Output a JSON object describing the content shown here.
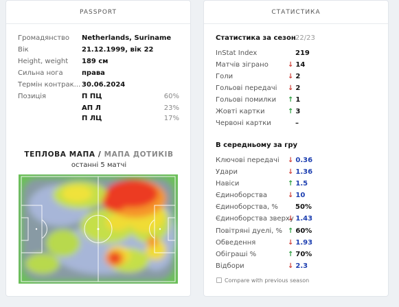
{
  "passport": {
    "title": "PASSPORT",
    "fields": [
      {
        "label": "Громадянство",
        "value": "Netherlands, Suriname"
      },
      {
        "label": "Вік",
        "value": "21.12.1999, вік 22"
      },
      {
        "label": "Height, weight",
        "value": "189 см"
      },
      {
        "label": "Сильна нога",
        "value": "права"
      },
      {
        "label": "Термін контрак...",
        "value": "30.06.2024"
      }
    ],
    "position_label": "Позиція",
    "positions": [
      {
        "name": "П ПЦ",
        "pct": "60%"
      },
      {
        "name": "АП Л",
        "pct": "23%"
      },
      {
        "name": "П ЛЦ",
        "pct": "17%"
      }
    ],
    "heatmap": {
      "title_main": "ТЕПЛОВА МАПА",
      "separator": " / ",
      "title_alt": "МАПА ДОТИКІВ",
      "subtitle": "останні 5 матчі"
    }
  },
  "stats": {
    "title": "СТАТИСТИКА",
    "season_title": "Статистика за сезон",
    "season": "22/23",
    "season_rows": [
      {
        "label": "InStat Index",
        "value": "219",
        "trend": "none"
      },
      {
        "label": "Матчів зіграно",
        "value": "14",
        "trend": "down"
      },
      {
        "label": "Голи",
        "value": "2",
        "trend": "down"
      },
      {
        "label": "Гольові передачі",
        "value": "2",
        "trend": "down"
      },
      {
        "label": "Гольові помилки",
        "value": "1",
        "trend": "up"
      },
      {
        "label": "Жовті картки",
        "value": "3",
        "trend": "up"
      },
      {
        "label": "Червоні картки",
        "value": "–",
        "trend": "none"
      }
    ],
    "avg_title": "В середньому за гру",
    "avg_rows": [
      {
        "label": "Ключові передачі",
        "value": "0.36",
        "trend": "down"
      },
      {
        "label": "Удари",
        "value": "1.36",
        "trend": "down"
      },
      {
        "label": "Навіси",
        "value": "1.5",
        "trend": "up"
      },
      {
        "label": "Єдиноборства",
        "value": "10",
        "trend": "down"
      },
      {
        "label": "Єдиноборства, %",
        "value": "50%",
        "trend": "none"
      },
      {
        "label": "Єдиноборства зверху",
        "value": "1.43",
        "trend": "down"
      },
      {
        "label": "Повітряні дуелі, %",
        "value": "60%",
        "trend": "up"
      },
      {
        "label": "Обведення",
        "value": "1.93",
        "trend": "down"
      },
      {
        "label": "Обіграші %",
        "value": "70%",
        "trend": "up"
      },
      {
        "label": "Відбори",
        "value": "2.3",
        "trend": "down"
      }
    ],
    "compare_label": "Compare with previous season"
  },
  "colors": {
    "up": "#2f9e41",
    "down": "#d0423a",
    "value_blue": "#1d3fb0",
    "pitch": "#6cbf5a"
  }
}
